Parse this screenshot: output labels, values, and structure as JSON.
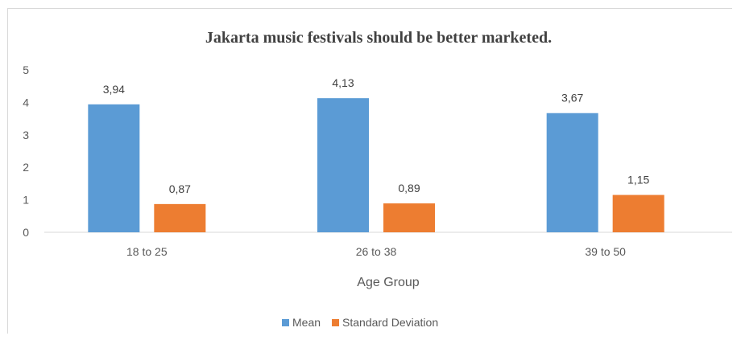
{
  "chart_data": {
    "type": "bar",
    "title": "Jakarta music festivals should be better marketed.",
    "xlabel": "Age Group",
    "ylabel": "",
    "categories": [
      "18 to 25",
      "26 to 38",
      "39 to 50"
    ],
    "series": [
      {
        "name": "Mean",
        "color": "#5b9bd5",
        "values": [
          3.94,
          4.13,
          3.67
        ],
        "labels": [
          "3,94",
          "4,13",
          "3,67"
        ]
      },
      {
        "name": "Standard Deviation",
        "color": "#ed7d31",
        "values": [
          0.87,
          0.89,
          1.15
        ],
        "labels": [
          "0,87",
          "0,89",
          "1,15"
        ]
      }
    ],
    "ylim": [
      0,
      5
    ],
    "yticks": [
      "0",
      "1",
      "2",
      "3",
      "4",
      "5"
    ],
    "grid": false,
    "legend": "bottom"
  }
}
